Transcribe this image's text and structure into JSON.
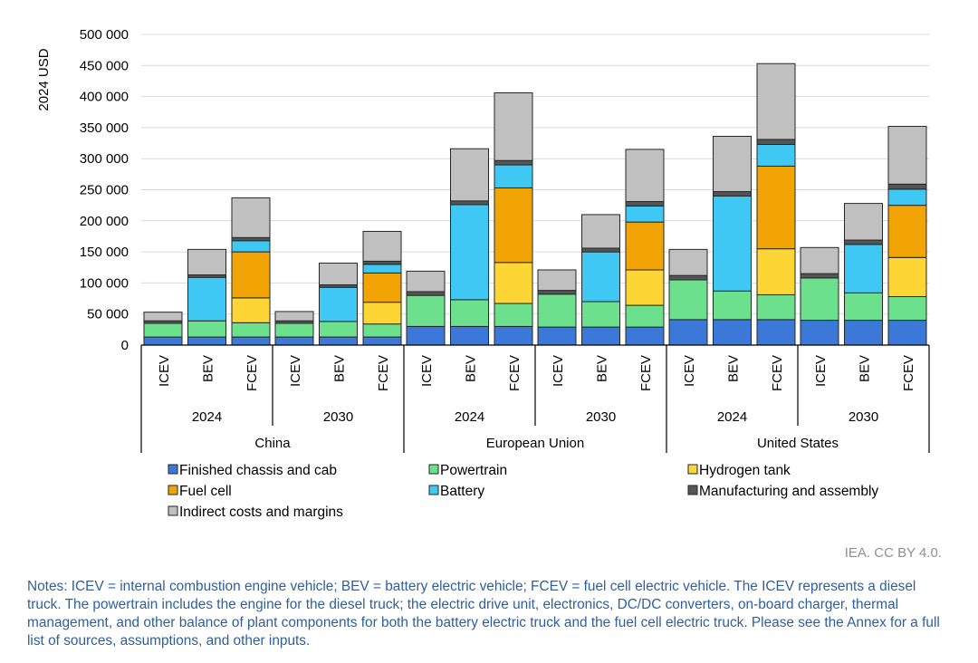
{
  "chart_data": {
    "type": "stacked-bar",
    "ylabel": "2024 USD",
    "ylim": [
      0,
      500000
    ],
    "yticks": [
      0,
      50000,
      100000,
      150000,
      200000,
      250000,
      300000,
      350000,
      400000,
      450000,
      500000
    ],
    "ytick_labels": [
      "0",
      "50 000",
      "100 000",
      "150 000",
      "200 000",
      "250 000",
      "300 000",
      "350 000",
      "400 000",
      "450 000",
      "500 000"
    ],
    "grid": "horizontal",
    "legend_position": "bottom",
    "groups": [
      {
        "region": "China",
        "years": [
          "2024",
          "2030"
        ]
      },
      {
        "region": "European Union",
        "years": [
          "2024",
          "2030"
        ]
      },
      {
        "region": "United States",
        "years": [
          "2024",
          "2030"
        ]
      }
    ],
    "categories": [
      "ICEV",
      "BEV",
      "FCEV",
      "ICEV",
      "BEV",
      "FCEV",
      "ICEV",
      "BEV",
      "FCEV",
      "ICEV",
      "BEV",
      "FCEV",
      "ICEV",
      "BEV",
      "FCEV",
      "ICEV",
      "BEV",
      "FCEV"
    ],
    "series": [
      {
        "name": "Finished chassis and cab",
        "color": "#3c78d8",
        "values": [
          13000,
          13000,
          13000,
          13000,
          13000,
          13000,
          30000,
          30000,
          30000,
          29000,
          29000,
          29000,
          41000,
          41000,
          41000,
          40000,
          40000,
          40000
        ]
      },
      {
        "name": "Powertrain",
        "color": "#6ce08c",
        "values": [
          22000,
          26000,
          23000,
          22000,
          25000,
          21000,
          50000,
          43000,
          37000,
          53000,
          41000,
          35000,
          64000,
          46000,
          40000,
          68000,
          44000,
          38000
        ]
      },
      {
        "name": "Hydrogen tank",
        "color": "#fdd535",
        "values": [
          0,
          0,
          40000,
          0,
          0,
          35000,
          0,
          0,
          66000,
          0,
          0,
          57000,
          0,
          0,
          74000,
          0,
          0,
          63000
        ]
      },
      {
        "name": "Fuel cell",
        "color": "#f2a404",
        "values": [
          0,
          0,
          74000,
          0,
          0,
          47000,
          0,
          0,
          120000,
          0,
          0,
          77000,
          0,
          0,
          133000,
          0,
          0,
          84000
        ]
      },
      {
        "name": "Battery",
        "color": "#3fc8f4",
        "values": [
          0,
          70000,
          18000,
          0,
          55000,
          14000,
          0,
          153000,
          37000,
          0,
          80000,
          26000,
          0,
          153000,
          35000,
          0,
          78000,
          26000
        ]
      },
      {
        "name": "Manufacturing and assembly",
        "color": "#555555",
        "values": [
          4000,
          4000,
          5000,
          4000,
          4000,
          5000,
          6000,
          6000,
          7000,
          6000,
          6000,
          7000,
          7000,
          7000,
          8000,
          7000,
          7000,
          8000
        ]
      },
      {
        "name": "Indirect costs and margins",
        "color": "#c0c0c0",
        "values": [
          14000,
          41000,
          64000,
          15000,
          35000,
          48000,
          33000,
          84000,
          109000,
          33000,
          54000,
          84000,
          42000,
          89000,
          122000,
          42000,
          59000,
          93000
        ]
      }
    ]
  },
  "attribution": "IEA. CC BY 4.0.",
  "notes": "Notes: ICEV = internal combustion engine vehicle; BEV = battery electric vehicle; FCEV = fuel cell electric vehicle. The ICEV represents a diesel truck. The powertrain includes the engine for the diesel truck; the electric drive unit, electronics, DC/DC converters, on-board charger, thermal management, and other balance of plant components for both the battery electric truck and the fuel cell electric truck. Please see the Annex for a full list of sources, assumptions, and other inputs."
}
